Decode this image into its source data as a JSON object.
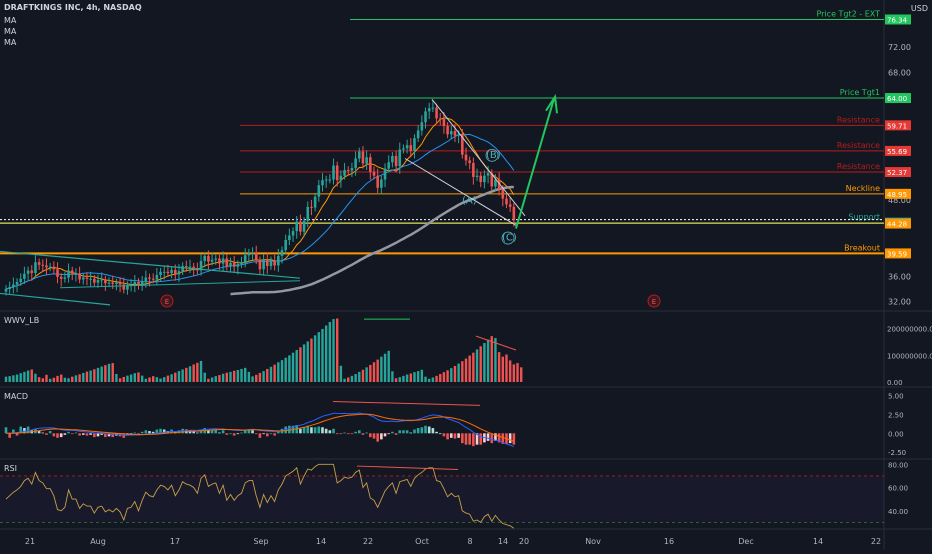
{
  "header": {
    "symbol": "DRAFTKINGS INC, 4h, NASDAQ",
    "ma_labels": [
      "MA",
      "MA",
      "MA"
    ],
    "currency": "USD"
  },
  "panels": {
    "wwv_label": "WWV_LB",
    "macd_label": "MACD",
    "rsi_label": "RSI"
  },
  "colors": {
    "up": "#26a69a",
    "down": "#ef5350",
    "green_line": "#22c55e",
    "red_line": "#b71c1c",
    "orange": "#ff9800",
    "teal": "#26a69a"
  },
  "chart_data": {
    "type": "candlestick",
    "price_axis_ticks": [
      "72.00",
      "68.00",
      "48.00",
      "36.00",
      "32.00"
    ],
    "ylim": [
      30.7,
      79.4
    ],
    "x_ticks": [
      "21",
      "Aug",
      "17",
      "Sep",
      "14",
      "22",
      "Oct",
      "8",
      "14",
      "20",
      "Nov",
      "16",
      "Dec",
      "14",
      "22"
    ],
    "levels": [
      {
        "label": "Price Tgt2 - EXT",
        "value": 76.34,
        "tag": "76.34",
        "color": "green"
      },
      {
        "label": "Price Tgt1",
        "value": 64.0,
        "tag": "64.00",
        "color": "green"
      },
      {
        "label": "Resistance",
        "value": 59.71,
        "tag": "59.71",
        "color": "red"
      },
      {
        "label": "Resistance",
        "value": 55.69,
        "tag": "55.69",
        "color": "red"
      },
      {
        "label": "Resistance",
        "value": 52.37,
        "tag": "52.37",
        "color": "red"
      },
      {
        "label": "Neckline",
        "value": 48.95,
        "tag": "48.95",
        "color": "orange"
      },
      {
        "label": "Support",
        "value": 44.42,
        "tag": "44.42",
        "color": "teal"
      },
      {
        "label": "",
        "value": 44.28,
        "tag": "44.28",
        "color": "orange"
      },
      {
        "label": "Breakout",
        "value": 39.59,
        "tag": "39.59",
        "color": "orange"
      }
    ],
    "wave_labels": [
      "(A)",
      "(B)",
      "(C)"
    ],
    "earnings_markers": [
      "E",
      "E"
    ],
    "price_series": [
      34.0,
      34.3,
      34.7,
      35.1,
      35.6,
      36.4,
      36.9,
      36.5,
      38.2,
      37.8,
      37.7,
      37.4,
      37.5,
      37.1,
      35.9,
      35.6,
      35.8,
      36.9,
      36.4,
      36.4,
      35.5,
      35.8,
      35.6,
      35.6,
      35.0,
      35.4,
      35.5,
      34.9,
      35.0,
      34.8,
      35.0,
      34.7,
      33.9,
      34.6,
      34.7,
      35.1,
      34.5,
      35.2,
      35.8,
      35.6,
      35.5,
      36.2,
      36.7,
      36.7,
      36.5,
      37.0,
      36.3,
      36.8,
      37.6,
      37.5,
      37.5,
      37.3,
      36.9,
      38.4,
      39.2,
      38.3,
      38.6,
      38.8,
      38.0,
      38.8,
      37.5,
      38.1,
      37.5,
      37.9,
      38.2,
      39.3,
      39.7,
      39.7,
      38.5,
      37.1,
      38.6,
      37.6,
      38.5,
      37.7,
      39.2,
      40.1,
      41.7,
      42.4,
      43.1,
      44.6,
      43.0,
      44.7,
      46.9,
      46.8,
      48.5,
      50.3,
      51.1,
      51.2,
      51.2,
      53.4,
      51.1,
      51.8,
      52.7,
      52.6,
      53.0,
      54.5,
      55.6,
      53.7,
      54.7,
      52.4,
      51.8,
      49.9,
      51.2,
      52.9,
      53.9,
      54.9,
      53.3,
      55.9,
      56.1,
      56.6,
      55.7,
      57.7,
      58.9,
      60.2,
      61.9,
      62.4,
      62.5,
      60.8,
      60.7,
      59.6,
      58.3,
      58.8,
      58.1,
      58.3,
      55.1,
      54.2,
      53.8,
      51.6,
      51.8,
      50.8,
      51.8,
      52.2,
      50.1,
      51.2,
      49.7,
      48.2,
      47.3,
      46.9,
      44.8
    ],
    "wwv_axis_ticks": [
      "200000000.00",
      "100000000.00",
      "0.00"
    ],
    "wwv_values": [
      20,
      22,
      25,
      28,
      33,
      38,
      43,
      47,
      31,
      18,
      14,
      27,
      12,
      16,
      23,
      28,
      16,
      14,
      20,
      25,
      29,
      34,
      39,
      43,
      48,
      53,
      58,
      63,
      68,
      71,
      30,
      14,
      19,
      24,
      28,
      33,
      36,
      24,
      12,
      17,
      22,
      18,
      13,
      18,
      24,
      29,
      35,
      41,
      47,
      53,
      59,
      66,
      72,
      79,
      35,
      12,
      17,
      22,
      26,
      31,
      35,
      38,
      42,
      45,
      49,
      53,
      38,
      21,
      27,
      34,
      41,
      49,
      57,
      65,
      74,
      82,
      91,
      100,
      110,
      120,
      130,
      141,
      152,
      163,
      175,
      187,
      199,
      212,
      225,
      236,
      238,
      61,
      12,
      17,
      23,
      30,
      38,
      46,
      55,
      64,
      74,
      84,
      95,
      106,
      117,
      40,
      14,
      18,
      23,
      28,
      32,
      37,
      41,
      46,
      20,
      12,
      17,
      23,
      30,
      37,
      44,
      52,
      60,
      69,
      78,
      88,
      99,
      110,
      122,
      134,
      146,
      159,
      172,
      165,
      112,
      95,
      103,
      81,
      66,
      71,
      55
    ],
    "macd_axis_ticks": [
      "5.00",
      "2.50",
      "0.00",
      "-2.50"
    ],
    "macd_hist": [
      0.8,
      -0.6,
      0.5,
      -0.3,
      0.9,
      0.7,
      0.9,
      0.4,
      0.6,
      0.3,
      0.1,
      -0.2,
      0.3,
      -0.4,
      -0.6,
      -0.5,
      -0.2,
      0.2,
      -0.1,
      0.1,
      -0.3,
      -0.2,
      -0.3,
      -0.2,
      -0.5,
      -0.4,
      -0.2,
      -0.5,
      -0.4,
      -0.5,
      -0.3,
      -0.4,
      -0.6,
      -0.3,
      -0.2,
      0.1,
      -0.2,
      0.2,
      0.4,
      0.3,
      0.2,
      0.5,
      0.6,
      0.5,
      0.3,
      0.5,
      0.2,
      0.4,
      0.6,
      0.5,
      0.4,
      0.3,
      0.1,
      0.5,
      0.7,
      0.4,
      0.4,
      0.5,
      0.1,
      0.4,
      -0.2,
      0.0,
      -0.3,
      -0.1,
      0.1,
      0.4,
      0.5,
      0.4,
      -0.1,
      -0.6,
      -0.1,
      -0.4,
      0.0,
      -0.3,
      0.3,
      0.6,
      0.9,
      1.0,
      1.0,
      1.1,
      0.6,
      0.8,
      1.0,
      0.8,
      0.8,
      0.9,
      0.8,
      0.6,
      0.4,
      0.6,
      -0.1,
      -0.1,
      0.1,
      -0.1,
      -0.1,
      0.2,
      0.4,
      -0.2,
      0.1,
      -0.5,
      -0.7,
      -1.1,
      -0.8,
      -0.4,
      -0.1,
      0.2,
      -0.2,
      0.4,
      0.4,
      0.4,
      0.1,
      0.5,
      0.7,
      0.8,
      1.0,
      0.9,
      0.7,
      0.2,
      0.0,
      -0.4,
      -0.8,
      -0.6,
      -0.7,
      -0.6,
      -1.3,
      -1.5,
      -1.5,
      -1.7,
      -1.5,
      -1.5,
      -1.2,
      -1.0,
      -1.3,
      -1.0,
      -1.2,
      -1.4,
      -1.4,
      -1.3,
      -1.5
    ],
    "rsi_axis_ticks": [
      "80.00",
      "60.00",
      "40.00"
    ],
    "rsi_values": [
      50,
      53,
      56,
      58,
      61,
      66,
      68,
      63,
      73,
      66,
      64,
      59,
      59,
      53,
      41,
      40,
      43,
      58,
      50,
      50,
      42,
      46,
      44,
      44,
      38,
      43,
      44,
      39,
      41,
      39,
      42,
      39,
      32,
      42,
      43,
      48,
      40,
      49,
      56,
      53,
      52,
      58,
      62,
      61,
      58,
      62,
      53,
      58,
      65,
      63,
      62,
      60,
      55,
      68,
      71,
      61,
      63,
      64,
      55,
      62,
      49,
      54,
      49,
      53,
      55,
      64,
      66,
      66,
      53,
      43,
      54,
      47,
      53,
      48,
      58,
      63,
      70,
      72,
      74,
      77,
      63,
      70,
      76,
      75,
      78,
      80,
      80,
      80,
      80,
      80,
      64,
      66,
      69,
      68,
      69,
      73,
      75,
      60,
      64,
      51,
      49,
      43,
      50,
      57,
      61,
      64,
      55,
      65,
      66,
      67,
      61,
      68,
      71,
      73,
      76,
      77,
      77,
      66,
      65,
      59,
      52,
      55,
      52,
      53,
      40,
      38,
      37,
      31,
      32,
      30,
      35,
      37,
      31,
      36,
      32,
      29,
      28,
      27,
      25
    ]
  }
}
